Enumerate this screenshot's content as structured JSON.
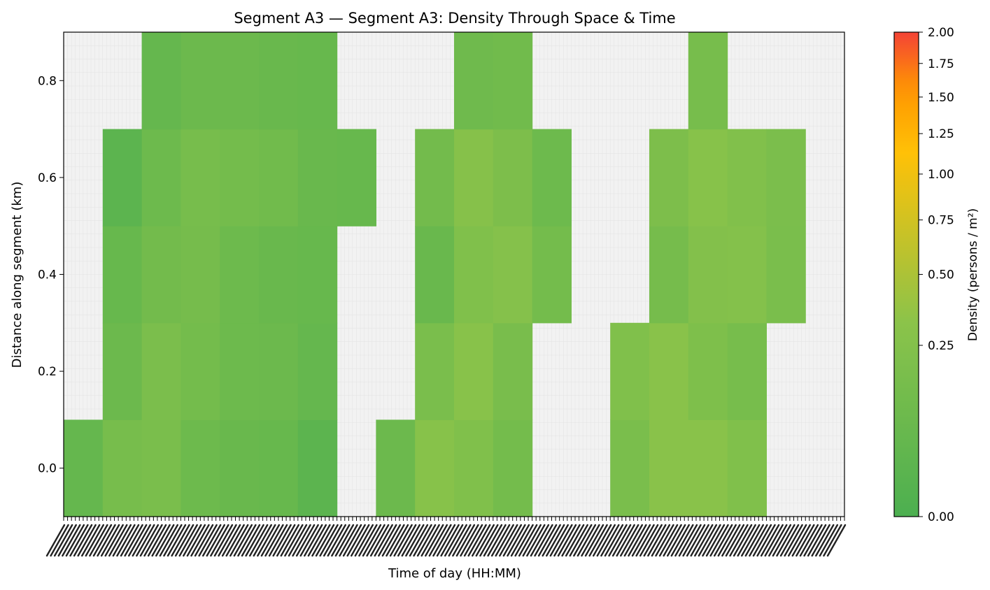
{
  "chart_data": {
    "type": "heatmap",
    "title": "Segment A3 — Segment A3: Density Through Space & Time",
    "xlabel": "Time of day (HH:MM)",
    "ylabel": "Distance along segment (km)",
    "colorbar_label": "Density (persons / m²)",
    "ylim": [
      -0.1,
      0.9
    ],
    "y_ticks": [
      0.0,
      0.2,
      0.4,
      0.6,
      0.8
    ],
    "y_tick_labels": [
      "0.0",
      "0.2",
      "0.4",
      "0.6",
      "0.8"
    ],
    "distance_rows": [
      0.0,
      0.2,
      0.4,
      0.6,
      0.8
    ],
    "time_bins": 20,
    "density": [
      [
        0.05,
        0.15,
        0.17,
        0.09,
        0.07,
        0.06,
        0.02,
        null,
        0.08,
        0.28,
        0.22,
        0.13,
        null,
        null,
        0.17,
        0.3,
        0.3,
        0.22,
        null,
        null
      ],
      [
        null,
        0.08,
        0.18,
        0.13,
        0.09,
        0.08,
        0.05,
        null,
        null,
        0.17,
        0.29,
        0.16,
        null,
        null,
        0.22,
        0.3,
        0.2,
        0.15,
        null,
        null
      ],
      [
        null,
        0.06,
        0.12,
        0.14,
        0.09,
        0.07,
        0.06,
        null,
        null,
        0.07,
        0.22,
        0.26,
        0.13,
        null,
        null,
        0.14,
        0.24,
        0.25,
        0.17,
        null
      ],
      [
        null,
        0.02,
        0.09,
        0.15,
        0.13,
        0.11,
        0.07,
        0.06,
        null,
        0.12,
        0.27,
        0.19,
        0.09,
        null,
        null,
        0.19,
        0.28,
        0.23,
        0.18,
        null
      ],
      [
        null,
        null,
        0.05,
        0.08,
        0.08,
        0.07,
        0.06,
        null,
        null,
        null,
        0.1,
        0.11,
        null,
        null,
        null,
        null,
        0.15,
        null,
        null,
        null
      ]
    ],
    "colorbar_ticks": [
      0.0,
      0.25,
      0.5,
      0.75,
      1.0,
      1.25,
      1.5,
      1.75,
      2.0
    ],
    "colorbar_tick_labels": [
      "0.00",
      "0.25",
      "0.50",
      "0.75",
      "1.00",
      "1.25",
      "1.50",
      "1.75",
      "2.00"
    ],
    "colorscale_stops": [
      "#4caf50",
      "#8bc34a",
      "#ffc107",
      "#ff9800",
      "#f44336"
    ],
    "no_data_color": "#f2f2f2"
  }
}
